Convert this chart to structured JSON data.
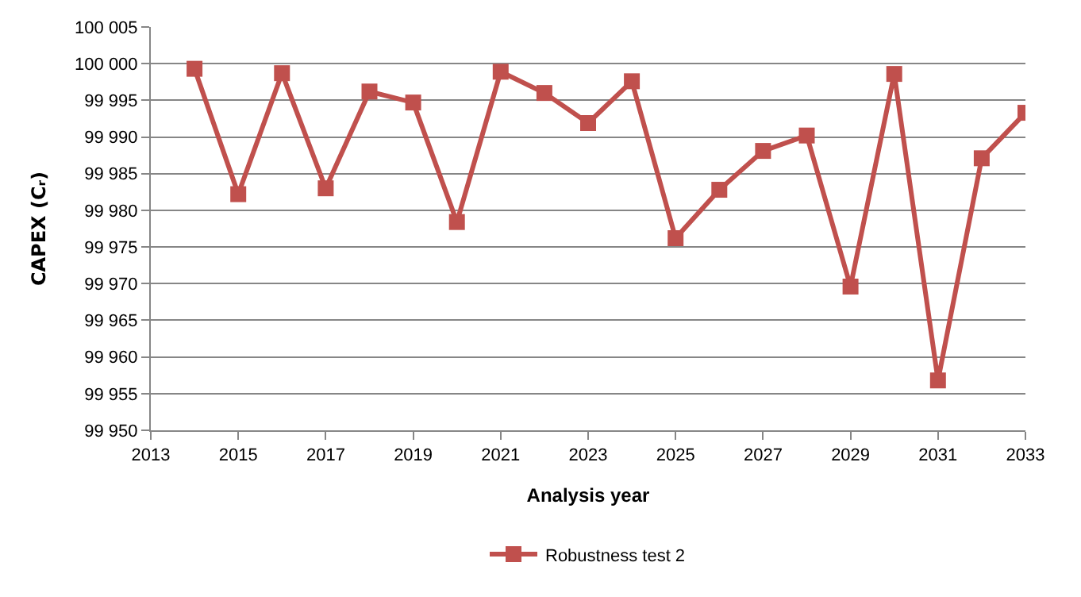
{
  "chart_data": {
    "type": "line",
    "xlabel": "Analysis year",
    "ylabel": "CAPEX (Cᵣ)",
    "x": [
      2014,
      2015,
      2016,
      2017,
      2018,
      2019,
      2020,
      2021,
      2022,
      2023,
      2024,
      2025,
      2026,
      2027,
      2028,
      2029,
      2030,
      2031,
      2032,
      2033
    ],
    "series": [
      {
        "name": "Robustness test 2",
        "color": "#c0504d",
        "values": [
          99999.3,
          99982.2,
          99998.7,
          99983.0,
          99996.2,
          99994.7,
          99978.4,
          99998.9,
          99996.0,
          99991.9,
          99997.6,
          99976.2,
          99982.8,
          99988.1,
          99990.2,
          99969.6,
          99998.6,
          99956.8,
          99987.1,
          99993.3
        ]
      }
    ],
    "xlim": [
      2013,
      2033
    ],
    "xticks": [
      2013,
      2015,
      2017,
      2019,
      2021,
      2023,
      2025,
      2027,
      2029,
      2031,
      2033
    ],
    "ylim": [
      99950,
      100005
    ],
    "yticks": [
      {
        "value": 99950,
        "label": "99 950"
      },
      {
        "value": 99955,
        "label": "99 955"
      },
      {
        "value": 99960,
        "label": "99 960"
      },
      {
        "value": 99965,
        "label": "99 965"
      },
      {
        "value": 99970,
        "label": "99 970"
      },
      {
        "value": 99975,
        "label": "99 975"
      },
      {
        "value": 99980,
        "label": "99 980"
      },
      {
        "value": 99985,
        "label": "99 985"
      },
      {
        "value": 99990,
        "label": "99 990"
      },
      {
        "value": 99995,
        "label": "99 995"
      },
      {
        "value": 100000,
        "label": "100 000"
      },
      {
        "value": 100005,
        "label": "100 005"
      }
    ],
    "grid": "y",
    "legend": "bottom",
    "marker": "square",
    "line_style": "solid"
  }
}
